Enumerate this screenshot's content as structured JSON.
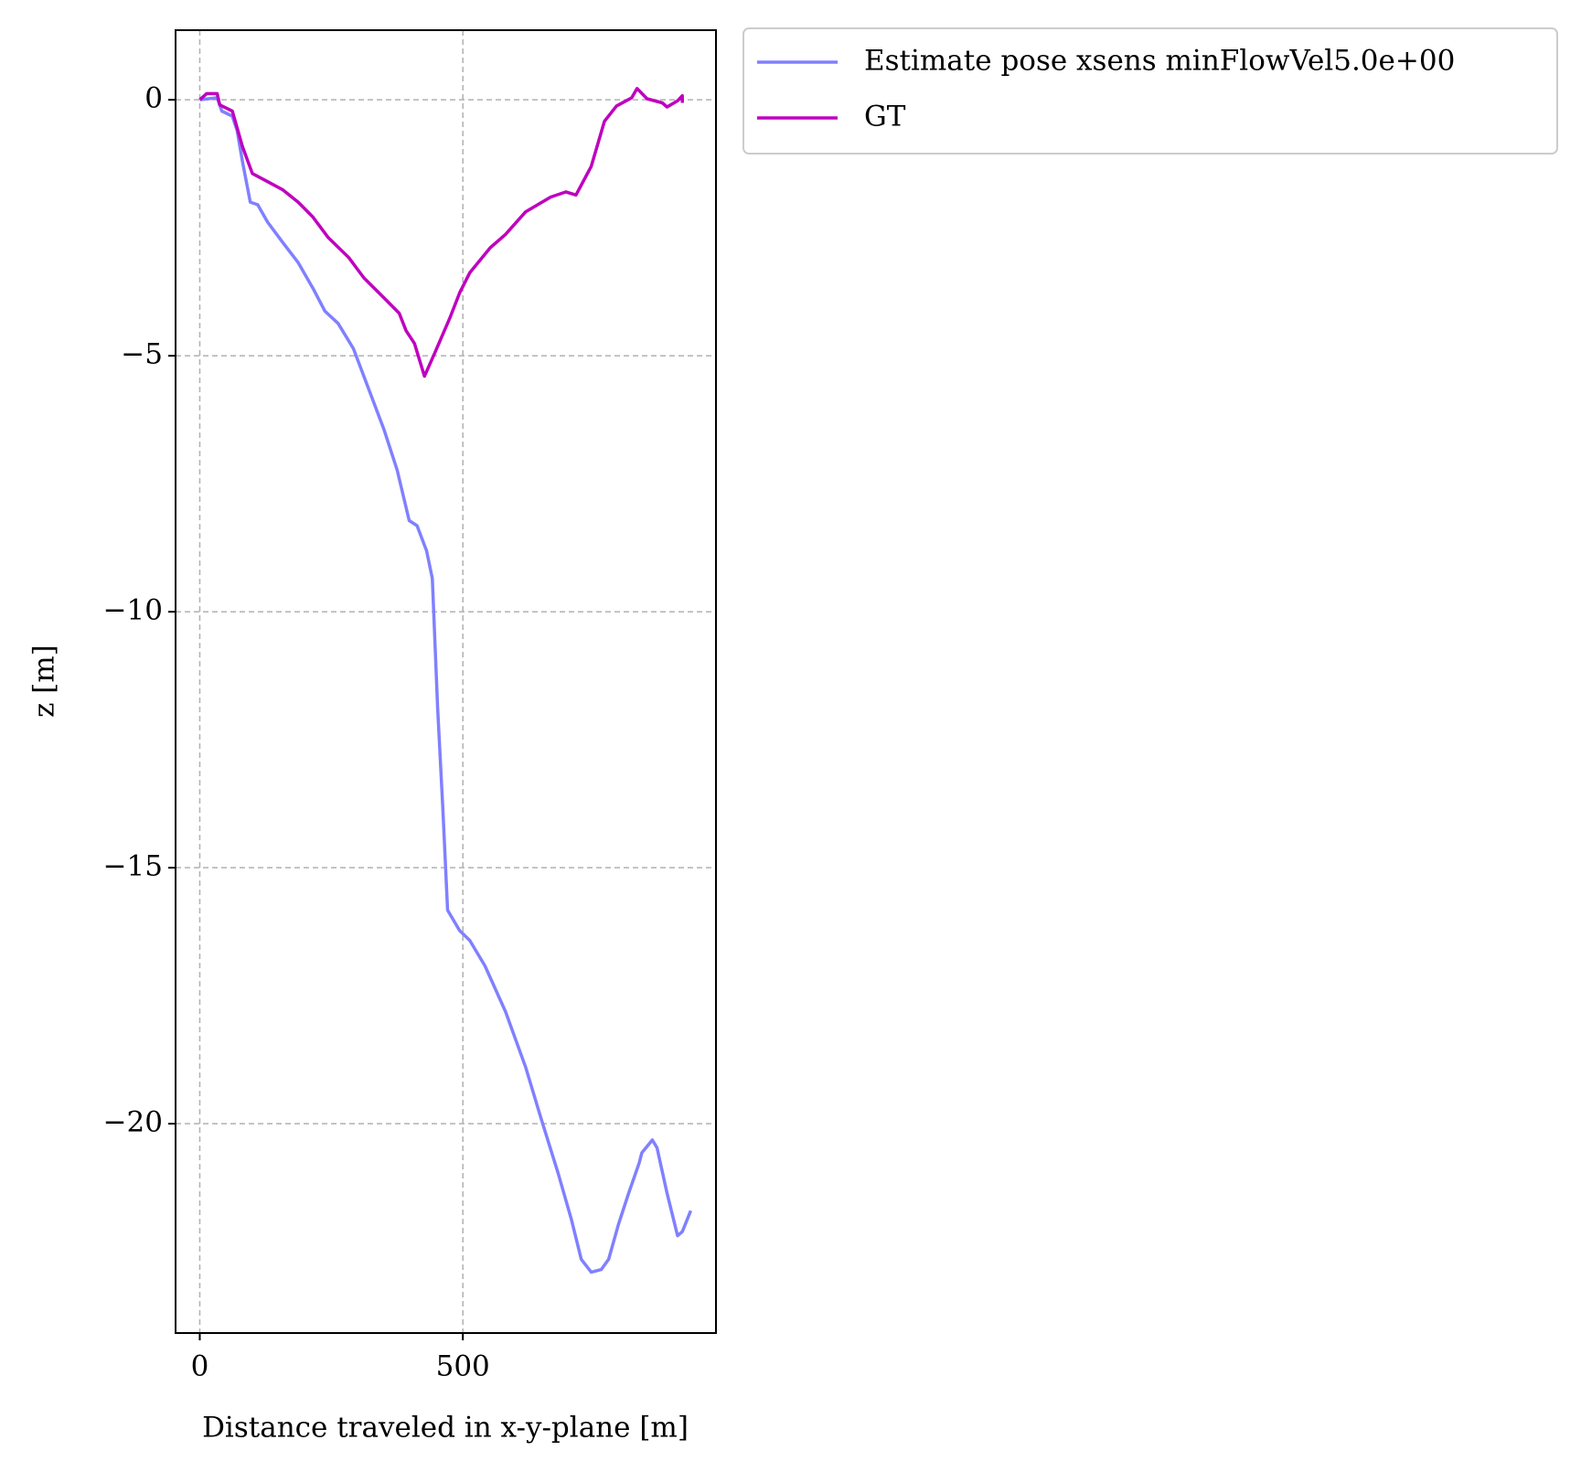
{
  "chart_data": {
    "type": "line",
    "xlabel": "Distance traveled in x-y-plane [m]",
    "ylabel": "z [m]",
    "xlim": [
      -46,
      981
    ],
    "ylim": [
      -24.09,
      1.36
    ],
    "xticks": [
      0,
      500
    ],
    "yticks": [
      0,
      {
        "value": -5,
        "label": "−5"
      },
      {
        "value": -10,
        "label": "−10"
      },
      {
        "value": -15,
        "label": "−15"
      },
      {
        "value": -20,
        "label": "−20"
      }
    ],
    "grid": true,
    "legend": "outside upper right",
    "series": [
      {
        "name": "Estimate pose xsens minFlowVel5.0e+00",
        "color": "#8080ff",
        "x": [
          0,
          33,
          42,
          62,
          71,
          81,
          96,
          110,
          129,
          158,
          187,
          215,
          238,
          263,
          292,
          321,
          350,
          375,
          398,
          413,
          431,
          442,
          452,
          462,
          471,
          494,
          513,
          542,
          581,
          619,
          648,
          681,
          706,
          725,
          744,
          763,
          777,
          796,
          815,
          835,
          840,
          860,
          869,
          888,
          908,
          917,
          933
        ],
        "values": [
          0,
          0.04,
          -0.22,
          -0.32,
          -0.6,
          -1.2,
          -2.0,
          -2.05,
          -2.39,
          -2.79,
          -3.18,
          -3.68,
          -4.13,
          -4.37,
          -4.86,
          -5.65,
          -6.44,
          -7.23,
          -8.22,
          -8.32,
          -8.81,
          -9.35,
          -11.88,
          -13.85,
          -15.83,
          -16.23,
          -16.42,
          -16.92,
          -17.81,
          -18.89,
          -19.88,
          -20.97,
          -21.86,
          -22.65,
          -22.9,
          -22.85,
          -22.65,
          -21.96,
          -21.36,
          -20.77,
          -20.57,
          -20.32,
          -20.47,
          -21.36,
          -22.19,
          -22.11,
          -21.7
        ]
      },
      {
        "name": "GT",
        "color": "#bf00bf",
        "x": [
          0,
          13,
          33,
          38,
          62,
          81,
          100,
          129,
          158,
          187,
          215,
          244,
          283,
          312,
          350,
          379,
          392,
          408,
          427,
          446,
          475,
          494,
          513,
          552,
          581,
          619,
          667,
          696,
          715,
          744,
          769,
          792,
          821,
          831,
          850,
          879,
          888,
          908,
          917,
          917
        ],
        "values": [
          0,
          0.12,
          0.12,
          -0.1,
          -0.22,
          -0.91,
          -1.44,
          -1.6,
          -1.76,
          -2.0,
          -2.29,
          -2.69,
          -3.08,
          -3.48,
          -3.87,
          -4.17,
          -4.51,
          -4.76,
          -5.4,
          -4.96,
          -4.27,
          -3.77,
          -3.38,
          -2.89,
          -2.63,
          -2.19,
          -1.9,
          -1.8,
          -1.86,
          -1.3,
          -0.42,
          -0.12,
          0.04,
          0.22,
          0.02,
          -0.06,
          -0.14,
          -0.02,
          0.08,
          -0.06
        ]
      }
    ]
  }
}
